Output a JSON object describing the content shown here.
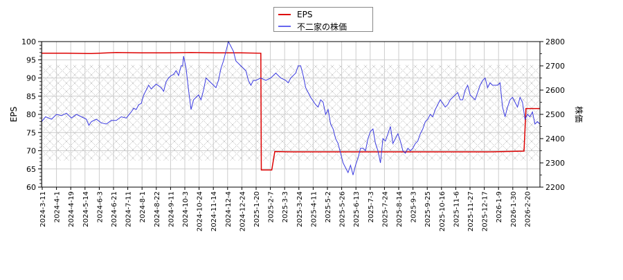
{
  "chart_data": {
    "type": "line",
    "title": "",
    "legend": {
      "position": "top-center",
      "entries": [
        {
          "label": "EPS",
          "color": "#dd0000"
        },
        {
          "label": "不二家の株価",
          "color": "#3333dd"
        }
      ]
    },
    "axes": {
      "left": {
        "label": "EPS",
        "range": [
          60,
          100
        ],
        "ticks": [
          60,
          65,
          70,
          75,
          80,
          85,
          90,
          95,
          100
        ]
      },
      "right": {
        "label": "株価",
        "range": [
          2200,
          2800
        ],
        "ticks": [
          2200,
          2300,
          2400,
          2500,
          2600,
          2700,
          2800
        ]
      },
      "x": {
        "label": "",
        "tick_labels": [
          "2024-3-11",
          "2024-4-1",
          "2024-4-19",
          "2024-5-14",
          "2024-6-3",
          "2024-6-21",
          "2024-7-11",
          "2024-8-1",
          "2024-8-22",
          "2024-9-11",
          "2024-10-3",
          "2024-10-24",
          "2024-11-14",
          "2024-12-4",
          "2024-12-24",
          "2025-1-20",
          "2025-2-7",
          "2025-3-3",
          "2025-3-24",
          "2025-4-11",
          "2025-5-2",
          "2025-5-26",
          "2025-6-13",
          "2025-7-3",
          "2025-7-24",
          "2025-8-14",
          "2025-9-3",
          "2025-9-25",
          "2025-10-16",
          "2025-11-6",
          "2025-11-27",
          "2025-12-17",
          "2026-1-9",
          "2026-1-30",
          "2026-2-20"
        ]
      }
    },
    "grid": true,
    "hatched_band": {
      "price_range": [
        2310,
        2705
      ]
    },
    "series": [
      {
        "name": "EPS",
        "axis": "left",
        "color": "#dd0000",
        "points_x_frac_y": [
          [
            0.0,
            96.8
          ],
          [
            0.05,
            96.8
          ],
          [
            0.1,
            96.7
          ],
          [
            0.15,
            97.0
          ],
          [
            0.2,
            96.9
          ],
          [
            0.25,
            96.9
          ],
          [
            0.3,
            97.0
          ],
          [
            0.35,
            96.9
          ],
          [
            0.4,
            96.9
          ],
          [
            0.44,
            96.8
          ],
          [
            0.441,
            64.7
          ],
          [
            0.462,
            64.7
          ],
          [
            0.468,
            69.8
          ],
          [
            0.5,
            69.7
          ],
          [
            0.6,
            69.7
          ],
          [
            0.7,
            69.7
          ],
          [
            0.8,
            69.7
          ],
          [
            0.9,
            69.7
          ],
          [
            0.968,
            69.9
          ],
          [
            0.972,
            81.6
          ],
          [
            1.0,
            81.6
          ]
        ]
      },
      {
        "name": "不二家の株価",
        "axis": "right",
        "color": "#3333dd",
        "points_x_frac_y": [
          [
            0.0,
            2470
          ],
          [
            0.008,
            2490
          ],
          [
            0.02,
            2480
          ],
          [
            0.03,
            2500
          ],
          [
            0.04,
            2495
          ],
          [
            0.05,
            2505
          ],
          [
            0.06,
            2485
          ],
          [
            0.07,
            2500
          ],
          [
            0.08,
            2490
          ],
          [
            0.09,
            2480
          ],
          [
            0.095,
            2455
          ],
          [
            0.1,
            2470
          ],
          [
            0.11,
            2480
          ],
          [
            0.12,
            2465
          ],
          [
            0.13,
            2460
          ],
          [
            0.14,
            2475
          ],
          [
            0.15,
            2475
          ],
          [
            0.16,
            2490
          ],
          [
            0.17,
            2485
          ],
          [
            0.18,
            2510
          ],
          [
            0.185,
            2525
          ],
          [
            0.19,
            2520
          ],
          [
            0.195,
            2540
          ],
          [
            0.2,
            2545
          ],
          [
            0.205,
            2580
          ],
          [
            0.21,
            2600
          ],
          [
            0.215,
            2620
          ],
          [
            0.22,
            2605
          ],
          [
            0.23,
            2625
          ],
          [
            0.24,
            2610
          ],
          [
            0.245,
            2595
          ],
          [
            0.25,
            2635
          ],
          [
            0.255,
            2650
          ],
          [
            0.26,
            2660
          ],
          [
            0.265,
            2665
          ],
          [
            0.27,
            2680
          ],
          [
            0.275,
            2660
          ],
          [
            0.28,
            2700
          ],
          [
            0.283,
            2700
          ],
          [
            0.285,
            2740
          ],
          [
            0.29,
            2690
          ],
          [
            0.295,
            2600
          ],
          [
            0.3,
            2520
          ],
          [
            0.305,
            2560
          ],
          [
            0.31,
            2570
          ],
          [
            0.315,
            2580
          ],
          [
            0.32,
            2560
          ],
          [
            0.325,
            2600
          ],
          [
            0.33,
            2650
          ],
          [
            0.34,
            2630
          ],
          [
            0.35,
            2610
          ],
          [
            0.355,
            2640
          ],
          [
            0.36,
            2690
          ],
          [
            0.365,
            2720
          ],
          [
            0.37,
            2760
          ],
          [
            0.375,
            2800
          ],
          [
            0.38,
            2780
          ],
          [
            0.385,
            2760
          ],
          [
            0.39,
            2720
          ],
          [
            0.4,
            2700
          ],
          [
            0.41,
            2680
          ],
          [
            0.415,
            2640
          ],
          [
            0.42,
            2620
          ],
          [
            0.425,
            2640
          ],
          [
            0.43,
            2640
          ],
          [
            0.44,
            2650
          ],
          [
            0.45,
            2640
          ],
          [
            0.46,
            2650
          ],
          [
            0.465,
            2660
          ],
          [
            0.47,
            2670
          ],
          [
            0.475,
            2660
          ],
          [
            0.48,
            2650
          ],
          [
            0.49,
            2640
          ],
          [
            0.495,
            2630
          ],
          [
            0.5,
            2650
          ],
          [
            0.51,
            2670
          ],
          [
            0.515,
            2700
          ],
          [
            0.52,
            2700
          ],
          [
            0.525,
            2660
          ],
          [
            0.53,
            2610
          ],
          [
            0.54,
            2570
          ],
          [
            0.55,
            2540
          ],
          [
            0.555,
            2530
          ],
          [
            0.56,
            2560
          ],
          [
            0.565,
            2550
          ],
          [
            0.57,
            2500
          ],
          [
            0.575,
            2520
          ],
          [
            0.58,
            2460
          ],
          [
            0.585,
            2440
          ],
          [
            0.59,
            2400
          ],
          [
            0.595,
            2380
          ],
          [
            0.6,
            2340
          ],
          [
            0.605,
            2300
          ],
          [
            0.61,
            2280
          ],
          [
            0.615,
            2260
          ],
          [
            0.62,
            2290
          ],
          [
            0.625,
            2250
          ],
          [
            0.63,
            2290
          ],
          [
            0.635,
            2320
          ],
          [
            0.64,
            2360
          ],
          [
            0.645,
            2360
          ],
          [
            0.65,
            2350
          ],
          [
            0.655,
            2400
          ],
          [
            0.66,
            2430
          ],
          [
            0.665,
            2440
          ],
          [
            0.67,
            2380
          ],
          [
            0.675,
            2350
          ],
          [
            0.68,
            2300
          ],
          [
            0.685,
            2400
          ],
          [
            0.69,
            2390
          ],
          [
            0.695,
            2420
          ],
          [
            0.7,
            2450
          ],
          [
            0.705,
            2380
          ],
          [
            0.71,
            2400
          ],
          [
            0.715,
            2420
          ],
          [
            0.72,
            2390
          ],
          [
            0.725,
            2350
          ],
          [
            0.73,
            2340
          ],
          [
            0.735,
            2360
          ],
          [
            0.74,
            2350
          ],
          [
            0.745,
            2360
          ],
          [
            0.75,
            2380
          ],
          [
            0.755,
            2390
          ],
          [
            0.76,
            2420
          ],
          [
            0.765,
            2440
          ],
          [
            0.77,
            2470
          ],
          [
            0.775,
            2480
          ],
          [
            0.78,
            2500
          ],
          [
            0.785,
            2490
          ],
          [
            0.79,
            2520
          ],
          [
            0.795,
            2540
          ],
          [
            0.8,
            2560
          ],
          [
            0.81,
            2530
          ],
          [
            0.815,
            2540
          ],
          [
            0.82,
            2560
          ],
          [
            0.83,
            2580
          ],
          [
            0.835,
            2590
          ],
          [
            0.84,
            2560
          ],
          [
            0.845,
            2560
          ],
          [
            0.85,
            2600
          ],
          [
            0.855,
            2620
          ],
          [
            0.86,
            2580
          ],
          [
            0.865,
            2570
          ],
          [
            0.87,
            2560
          ],
          [
            0.875,
            2590
          ],
          [
            0.88,
            2620
          ],
          [
            0.885,
            2640
          ],
          [
            0.89,
            2650
          ],
          [
            0.895,
            2610
          ],
          [
            0.9,
            2630
          ],
          [
            0.905,
            2620
          ],
          [
            0.91,
            2620
          ],
          [
            0.915,
            2620
          ],
          [
            0.92,
            2630
          ],
          [
            0.925,
            2530
          ],
          [
            0.93,
            2490
          ],
          [
            0.935,
            2530
          ],
          [
            0.94,
            2560
          ],
          [
            0.945,
            2570
          ],
          [
            0.95,
            2550
          ],
          [
            0.955,
            2530
          ],
          [
            0.96,
            2570
          ],
          [
            0.965,
            2550
          ],
          [
            0.97,
            2480
          ],
          [
            0.975,
            2500
          ],
          [
            0.98,
            2490
          ],
          [
            0.985,
            2510
          ],
          [
            0.99,
            2460
          ],
          [
            0.995,
            2470
          ],
          [
            1.0,
            2460
          ]
        ]
      }
    ]
  }
}
